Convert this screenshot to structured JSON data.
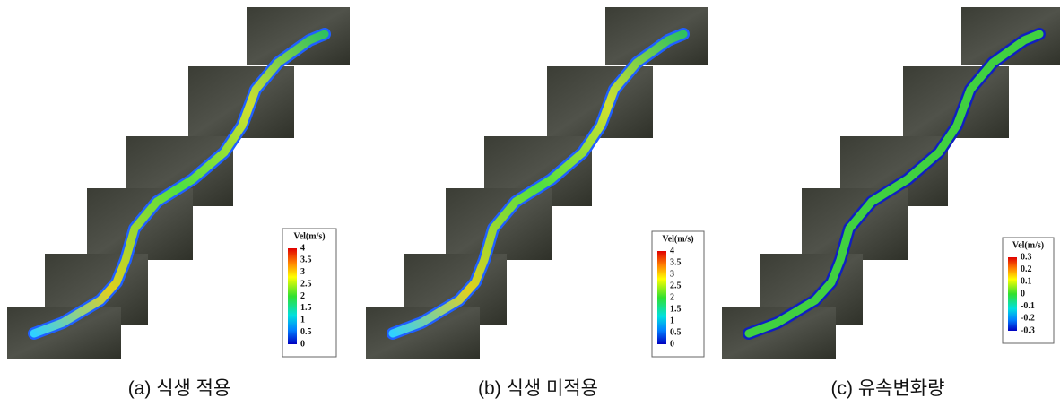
{
  "panels": [
    {
      "caption": "(a) 식생 적용",
      "legend": {
        "title": "Vel(m/s)",
        "labels": [
          "4",
          "3.5",
          "3",
          "2.5",
          "2",
          "1.5",
          "1",
          "0.5",
          "0"
        ]
      }
    },
    {
      "caption": "(b) 식생 미적용",
      "legend": {
        "title": "Vel(m/s)",
        "labels": [
          "4",
          "3.5",
          "3",
          "2.5",
          "2",
          "1.5",
          "1",
          "0.5",
          "0"
        ]
      }
    },
    {
      "caption": "(c) 유속변화량",
      "legend": {
        "title": "Vel(m/s)",
        "labels": [
          "0.3",
          "0.2",
          "0.1",
          "0",
          "-0.1",
          "-0.2",
          "-0.3"
        ]
      }
    }
  ]
}
